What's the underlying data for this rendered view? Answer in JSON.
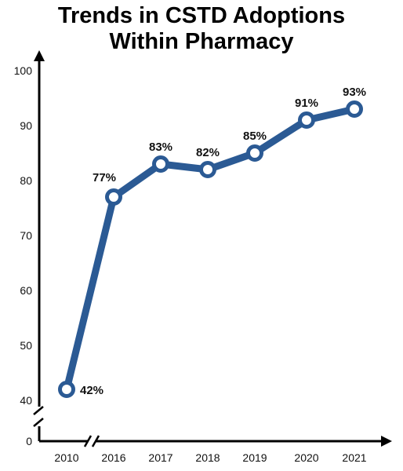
{
  "chart_data": {
    "type": "line",
    "title_lines": [
      "Trends in CSTD Adoptions",
      "Within Pharmacy"
    ],
    "categories": [
      "2010",
      "2016",
      "2017",
      "2018",
      "2019",
      "2020",
      "2021"
    ],
    "values": [
      42,
      77,
      83,
      82,
      85,
      91,
      93
    ],
    "data_labels": [
      "42%",
      "77%",
      "83%",
      "82%",
      "85%",
      "91%",
      "93%"
    ],
    "y_ticks": [
      0,
      40,
      50,
      60,
      70,
      80,
      90,
      100
    ],
    "ylim": [
      0,
      100
    ],
    "y_axis_break": true,
    "x_axis_break": true,
    "grid": false,
    "xlabel": "",
    "ylabel": "",
    "colors": {
      "line": "#2b5a94",
      "marker_fill": "#ffffff",
      "axis": "#000000"
    }
  }
}
